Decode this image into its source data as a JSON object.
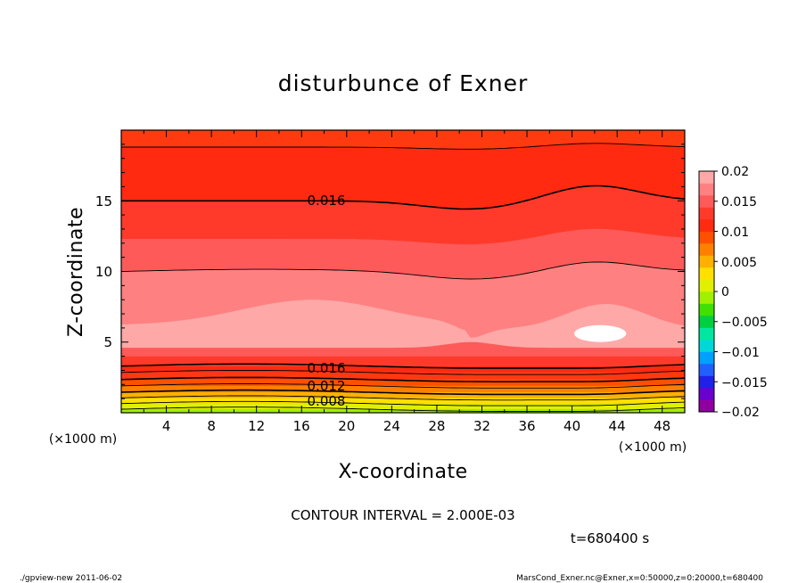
{
  "chart_data": {
    "type": "contour",
    "title": "disturbunce of Exner",
    "xlabel": "X-coordinate",
    "ylabel": "Z-coordinate",
    "x_units": "(×1000 m)",
    "y_units": "(×1000 m)",
    "xlim": [
      0,
      50
    ],
    "ylim": [
      0,
      20
    ],
    "x_ticks": [
      4,
      8,
      12,
      16,
      20,
      24,
      28,
      32,
      36,
      40,
      44,
      48
    ],
    "y_ticks": [
      5,
      10,
      15
    ],
    "contour_interval_text": "CONTOUR INTERVAL = 2.000E-03",
    "time_text": "t=680400 s",
    "contour_labels": [
      {
        "text": "0.016",
        "x": 18,
        "z": 15
      },
      {
        "text": "0.016",
        "x": 18,
        "z": 3.2
      },
      {
        "text": "0.012",
        "x": 18,
        "z": 2.0
      },
      {
        "text": "0.008",
        "x": 18,
        "z": 0.8
      }
    ],
    "colorbar": {
      "labels": [
        "0.02",
        "0.015",
        "0.01",
        "0.005",
        "0",
        "-0.005",
        "-0.01",
        "-0.015",
        "-0.02"
      ],
      "label_texts": [
        "0.02",
        "0.015",
        "0.01",
        "0.005",
        "0",
        "−0.005",
        "−0.01",
        "−0.015",
        "−0.02"
      ],
      "colors": [
        "#9000a0",
        "#6a00d0",
        "#2020e8",
        "#2060ff",
        "#00a0ff",
        "#00d8d8",
        "#00e8a0",
        "#00d040",
        "#40e000",
        "#a0f000",
        "#e0f000",
        "#ffe000",
        "#ffb000",
        "#ff8000",
        "#ff5000",
        "#ff2a10",
        "#ff3a2a",
        "#ff5a5a",
        "#ff8080",
        "#ffa8a8"
      ]
    },
    "color_bands": [
      {
        "z": 0.0,
        "color": "#a0f000"
      },
      {
        "z": 0.25,
        "color": "#e0f000"
      },
      {
        "z": 0.65,
        "color": "#ffe000"
      },
      {
        "z": 1.05,
        "color": "#ffb000"
      },
      {
        "z": 1.45,
        "color": "#ff8000"
      },
      {
        "z": 1.9,
        "color": "#ff5000"
      },
      {
        "z": 2.35,
        "color": "#ff3810"
      },
      {
        "z": 2.85,
        "color": "#ff2a10"
      },
      {
        "z": 3.3,
        "color": "#ff3a2a"
      },
      {
        "z": 4.0,
        "color": "#ff5a5a"
      },
      {
        "z": 5.2,
        "color": "#ff8080"
      }
    ],
    "white_region": {
      "x_center": 42.5,
      "z_center": 5.6,
      "rx": 2.3,
      "rz": 0.6
    },
    "top_bands": [
      {
        "color": "#ff8080",
        "z_low": 5.5,
        "z_high": 10
      },
      {
        "color": "#ff5a5a",
        "z_low": 10,
        "z_high": 12.3
      },
      {
        "color": "#ff3a2a",
        "z_low": 12.3,
        "z_high": 15
      },
      {
        "color": "#ff2a10",
        "z_low": 15,
        "z_high": 18.8
      },
      {
        "color": "#ff3a10",
        "z_low": 18.8,
        "z_high": 20
      }
    ]
  },
  "footer": {
    "left": "./gpview-new  2011-06-02",
    "right": "MarsCond_Exner.nc@Exner,x=0:50000,z=0:20000,t=680400"
  }
}
